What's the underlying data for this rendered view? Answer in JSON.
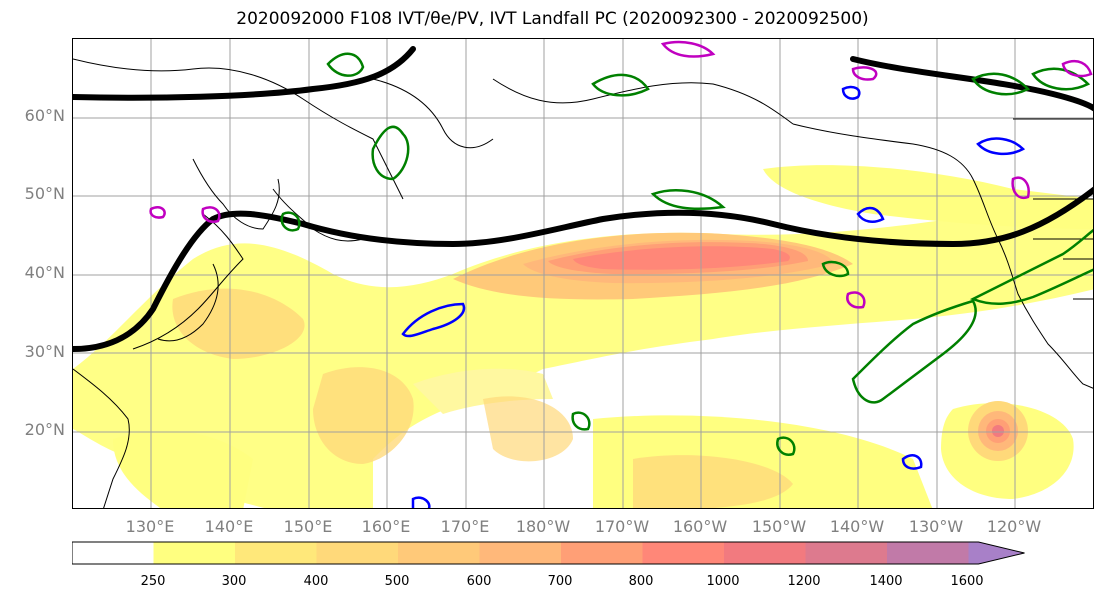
{
  "title": "2020092000 F108 IVT/θe/PV, IVT Landfall PC (2020092300 - 2020092500)",
  "map": {
    "lat_labels": [
      "60°N",
      "50°N",
      "40°N",
      "30°N",
      "20°N"
    ],
    "lon_labels": [
      "130°E",
      "140°E",
      "150°E",
      "160°E",
      "170°E",
      "180°W",
      "170°W",
      "160°W",
      "150°W",
      "140°W",
      "130°W",
      "120°W"
    ],
    "contour_colors": {
      "theta_e": "#008000",
      "pv_pos": "#0000ff",
      "pv_neg": "#c000c0",
      "steering": "#000000"
    }
  },
  "colorbar": {
    "tick_labels": [
      "250",
      "300",
      "400",
      "500",
      "600",
      "700",
      "800",
      "1000",
      "1200",
      "1400",
      "1600"
    ],
    "colors": [
      "#ffffff",
      "#ffff80",
      "#ffe87a",
      "#ffd97a",
      "#ffc979",
      "#ffb87a",
      "#ff9f76",
      "#ff8778",
      "#f27a7f",
      "#dd7a8e",
      "#c17aa8",
      "#a880c8"
    ],
    "extend": "max"
  }
}
